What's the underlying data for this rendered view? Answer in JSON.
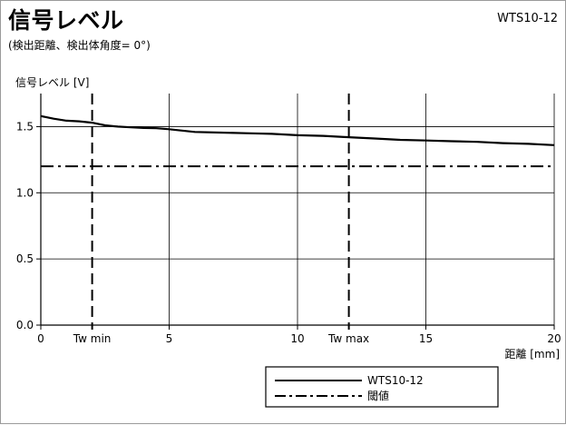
{
  "header": {
    "title": "信号レベル",
    "subtitle": "(検出距離、検出体角度= 0°)",
    "model": "WTS10-12"
  },
  "chart_data": {
    "type": "line",
    "ylabel": "信号レベル [V]",
    "xlabel": "距離 [mm]",
    "xlim": [
      0,
      20
    ],
    "ylim": [
      0,
      1.75
    ],
    "x_ticks": [
      {
        "value": 0,
        "label": "0"
      },
      {
        "value": 5,
        "label": "5"
      },
      {
        "value": 10,
        "label": "10"
      },
      {
        "value": 15,
        "label": "15"
      },
      {
        "value": 20,
        "label": "20"
      }
    ],
    "y_ticks": [
      {
        "value": 0,
        "label": "0.0"
      },
      {
        "value": 0.5,
        "label": "0.5"
      },
      {
        "value": 1.0,
        "label": "1.0"
      },
      {
        "value": 1.5,
        "label": "1.5"
      }
    ],
    "grid": true,
    "series": [
      {
        "name": "WTS10-12",
        "style": "solid",
        "x": [
          0,
          0.5,
          1,
          1.5,
          2,
          2.5,
          3,
          3.5,
          4,
          4.5,
          5,
          6,
          7,
          8,
          9,
          10,
          11,
          12,
          13,
          14,
          15,
          16,
          17,
          18,
          19,
          20
        ],
        "y": [
          1.58,
          1.56,
          1.545,
          1.54,
          1.53,
          1.51,
          1.5,
          1.495,
          1.49,
          1.488,
          1.48,
          1.46,
          1.455,
          1.45,
          1.445,
          1.435,
          1.43,
          1.42,
          1.41,
          1.4,
          1.395,
          1.39,
          1.385,
          1.375,
          1.37,
          1.36
        ]
      }
    ],
    "threshold": {
      "name": "閾値",
      "value": 1.2,
      "style": "dash-dot"
    },
    "markers": [
      {
        "label": "Tw min",
        "x": 2
      },
      {
        "label": "Tw max",
        "x": 12
      }
    ],
    "legend_position": "bottom-center"
  }
}
